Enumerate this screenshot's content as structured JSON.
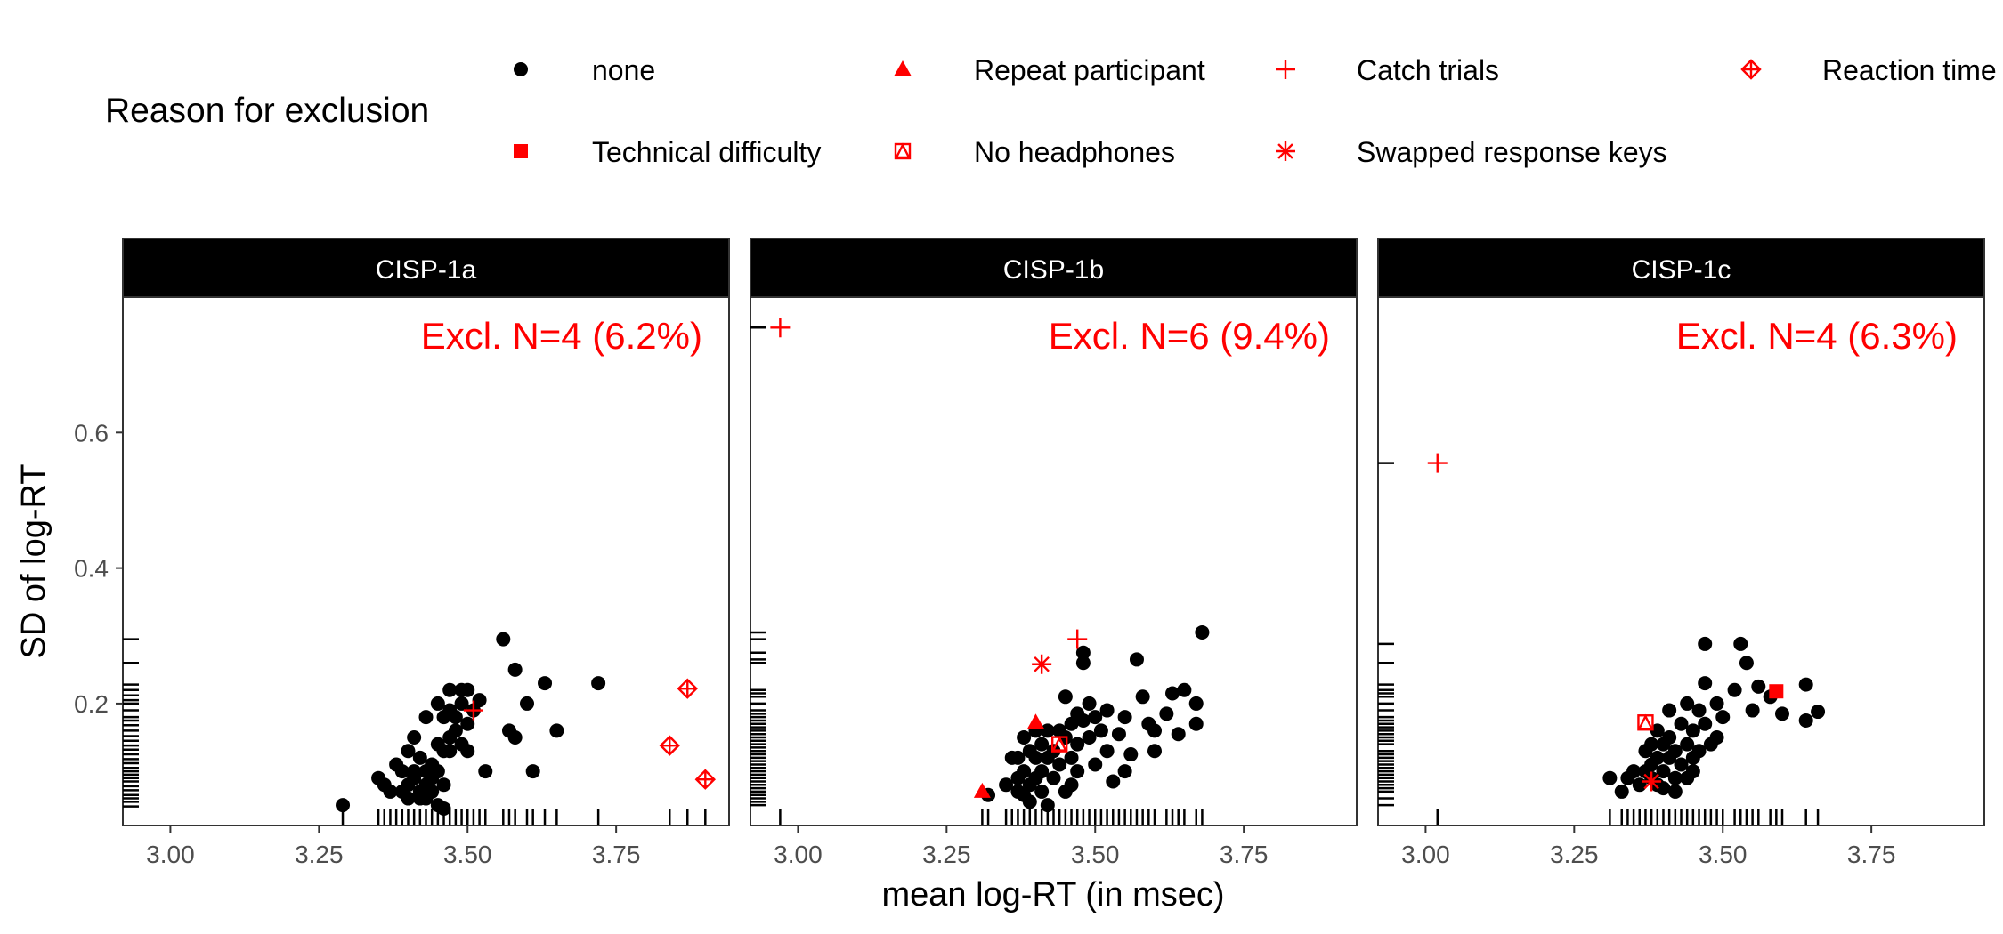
{
  "legend": {
    "title": "Reason for exclusion",
    "items": [
      {
        "label": "none",
        "shape": "circle",
        "color": "#000000"
      },
      {
        "label": "Repeat participant",
        "shape": "triangle",
        "color": "#ff0000"
      },
      {
        "label": "Catch trials",
        "shape": "plus",
        "color": "#ff0000"
      },
      {
        "label": "Reaction time",
        "shape": "diamond-plus",
        "color": "#ff0000"
      },
      {
        "label": "Technical difficulty",
        "shape": "square",
        "color": "#ff0000"
      },
      {
        "label": "No headphones",
        "shape": "square-triangle",
        "color": "#ff0000"
      },
      {
        "label": "Swapped response keys",
        "shape": "asterisk",
        "color": "#ff0000"
      }
    ]
  },
  "chart_data": {
    "type": "scatter",
    "xlabel": "mean log-RT (in msec)",
    "ylabel": "SD of log-RT",
    "xlim": [
      2.92,
      3.94
    ],
    "ylim": [
      0.02,
      0.8
    ],
    "xticks": [
      "3.00",
      "3.25",
      "3.50",
      "3.75"
    ],
    "xtick_values": [
      3.0,
      3.25,
      3.5,
      3.75
    ],
    "yticks": [
      "0.2",
      "0.4",
      "0.6"
    ],
    "ytick_values": [
      0.2,
      0.4,
      0.6
    ],
    "annotation_color": "#ff0000",
    "panels": [
      {
        "title": "CISP-1a",
        "annotation": "Excl. N=4 (6.2%)",
        "points_none": [
          [
            3.29,
            0.05
          ],
          [
            3.35,
            0.09
          ],
          [
            3.36,
            0.08
          ],
          [
            3.37,
            0.07
          ],
          [
            3.38,
            0.11
          ],
          [
            3.39,
            0.1
          ],
          [
            3.39,
            0.07
          ],
          [
            3.4,
            0.13
          ],
          [
            3.4,
            0.08
          ],
          [
            3.4,
            0.06
          ],
          [
            3.41,
            0.15
          ],
          [
            3.41,
            0.1
          ],
          [
            3.41,
            0.09
          ],
          [
            3.42,
            0.12
          ],
          [
            3.42,
            0.07
          ],
          [
            3.42,
            0.06
          ],
          [
            3.43,
            0.18
          ],
          [
            3.43,
            0.1
          ],
          [
            3.43,
            0.08
          ],
          [
            3.43,
            0.06
          ],
          [
            3.44,
            0.11
          ],
          [
            3.44,
            0.09
          ],
          [
            3.44,
            0.07
          ],
          [
            3.45,
            0.2
          ],
          [
            3.45,
            0.14
          ],
          [
            3.45,
            0.1
          ],
          [
            3.45,
            0.05
          ],
          [
            3.46,
            0.18
          ],
          [
            3.46,
            0.13
          ],
          [
            3.46,
            0.08
          ],
          [
            3.46,
            0.045
          ],
          [
            3.47,
            0.22
          ],
          [
            3.47,
            0.19
          ],
          [
            3.47,
            0.15
          ],
          [
            3.47,
            0.13
          ],
          [
            3.48,
            0.18
          ],
          [
            3.48,
            0.16
          ],
          [
            3.49,
            0.22
          ],
          [
            3.49,
            0.2
          ],
          [
            3.49,
            0.14
          ],
          [
            3.5,
            0.22
          ],
          [
            3.5,
            0.17
          ],
          [
            3.5,
            0.13
          ],
          [
            3.51,
            0.19
          ],
          [
            3.52,
            0.205
          ],
          [
            3.53,
            0.1
          ],
          [
            3.56,
            0.295
          ],
          [
            3.57,
            0.16
          ],
          [
            3.58,
            0.25
          ],
          [
            3.58,
            0.15
          ],
          [
            3.6,
            0.2
          ],
          [
            3.61,
            0.1
          ],
          [
            3.63,
            0.23
          ],
          [
            3.65,
            0.16
          ],
          [
            3.72,
            0.23
          ]
        ],
        "points_excl": [
          {
            "reason": "Reaction time",
            "x": 3.84,
            "y": 0.138
          },
          {
            "reason": "Reaction time",
            "x": 3.87,
            "y": 0.222
          },
          {
            "reason": "Reaction time",
            "x": 3.9,
            "y": 0.088
          },
          {
            "reason": "Catch trials",
            "x": 3.51,
            "y": 0.19
          }
        ],
        "rug_y": [
          0.048,
          0.055,
          0.06,
          0.065,
          0.072,
          0.078,
          0.085,
          0.09,
          0.095,
          0.1,
          0.105,
          0.112,
          0.118,
          0.125,
          0.132,
          0.138,
          0.145,
          0.152,
          0.16,
          0.168,
          0.175,
          0.18,
          0.19,
          0.2,
          0.205,
          0.212,
          0.22,
          0.228,
          0.26,
          0.295
        ],
        "rug_x": [
          3.29,
          3.35,
          3.36,
          3.37,
          3.38,
          3.39,
          3.4,
          3.41,
          3.42,
          3.43,
          3.44,
          3.45,
          3.46,
          3.47,
          3.48,
          3.49,
          3.5,
          3.51,
          3.52,
          3.53,
          3.56,
          3.57,
          3.58,
          3.6,
          3.61,
          3.63,
          3.65,
          3.72,
          3.84,
          3.87,
          3.9
        ]
      },
      {
        "title": "CISP-1b",
        "annotation": "Excl. N=6 (9.4%)",
        "points_none": [
          [
            3.32,
            0.065
          ],
          [
            3.35,
            0.08
          ],
          [
            3.36,
            0.12
          ],
          [
            3.37,
            0.12
          ],
          [
            3.37,
            0.09
          ],
          [
            3.37,
            0.07
          ],
          [
            3.38,
            0.15
          ],
          [
            3.38,
            0.1
          ],
          [
            3.38,
            0.065
          ],
          [
            3.39,
            0.13
          ],
          [
            3.39,
            0.08
          ],
          [
            3.39,
            0.055
          ],
          [
            3.4,
            0.16
          ],
          [
            3.4,
            0.12
          ],
          [
            3.4,
            0.09
          ],
          [
            3.41,
            0.14
          ],
          [
            3.41,
            0.1
          ],
          [
            3.41,
            0.07
          ],
          [
            3.42,
            0.16
          ],
          [
            3.42,
            0.12
          ],
          [
            3.42,
            0.05
          ],
          [
            3.43,
            0.13
          ],
          [
            3.43,
            0.09
          ],
          [
            3.44,
            0.16
          ],
          [
            3.44,
            0.11
          ],
          [
            3.45,
            0.21
          ],
          [
            3.45,
            0.15
          ],
          [
            3.45,
            0.07
          ],
          [
            3.46,
            0.17
          ],
          [
            3.46,
            0.12
          ],
          [
            3.46,
            0.08
          ],
          [
            3.47,
            0.185
          ],
          [
            3.47,
            0.14
          ],
          [
            3.47,
            0.1
          ],
          [
            3.48,
            0.275
          ],
          [
            3.48,
            0.26
          ],
          [
            3.48,
            0.175
          ],
          [
            3.49,
            0.2
          ],
          [
            3.49,
            0.15
          ],
          [
            3.5,
            0.18
          ],
          [
            3.5,
            0.11
          ],
          [
            3.51,
            0.16
          ],
          [
            3.52,
            0.19
          ],
          [
            3.52,
            0.13
          ],
          [
            3.53,
            0.085
          ],
          [
            3.54,
            0.155
          ],
          [
            3.55,
            0.18
          ],
          [
            3.55,
            0.1
          ],
          [
            3.56,
            0.125
          ],
          [
            3.57,
            0.265
          ],
          [
            3.58,
            0.21
          ],
          [
            3.59,
            0.17
          ],
          [
            3.6,
            0.16
          ],
          [
            3.6,
            0.13
          ],
          [
            3.62,
            0.185
          ],
          [
            3.63,
            0.215
          ],
          [
            3.64,
            0.155
          ],
          [
            3.65,
            0.22
          ],
          [
            3.67,
            0.2
          ],
          [
            3.67,
            0.17
          ],
          [
            3.68,
            0.305
          ]
        ],
        "points_excl": [
          {
            "reason": "Catch trials",
            "x": 2.97,
            "y": 0.755
          },
          {
            "reason": "Catch trials",
            "x": 3.47,
            "y": 0.295
          },
          {
            "reason": "Swapped response keys",
            "x": 3.41,
            "y": 0.258
          },
          {
            "reason": "Repeat participant",
            "x": 3.4,
            "y": 0.172
          },
          {
            "reason": "Repeat participant",
            "x": 3.31,
            "y": 0.07
          },
          {
            "reason": "No headphones",
            "x": 3.44,
            "y": 0.14
          }
        ],
        "rug_y": [
          0.05,
          0.055,
          0.06,
          0.065,
          0.07,
          0.075,
          0.08,
          0.085,
          0.09,
          0.095,
          0.1,
          0.105,
          0.11,
          0.115,
          0.12,
          0.125,
          0.13,
          0.135,
          0.14,
          0.145,
          0.15,
          0.155,
          0.16,
          0.165,
          0.17,
          0.175,
          0.18,
          0.185,
          0.19,
          0.2,
          0.21,
          0.215,
          0.22,
          0.26,
          0.265,
          0.275,
          0.295,
          0.305,
          0.755
        ],
        "rug_x": [
          2.97,
          3.31,
          3.32,
          3.35,
          3.36,
          3.37,
          3.38,
          3.39,
          3.4,
          3.41,
          3.42,
          3.43,
          3.44,
          3.45,
          3.46,
          3.47,
          3.48,
          3.49,
          3.5,
          3.51,
          3.52,
          3.53,
          3.54,
          3.55,
          3.56,
          3.57,
          3.58,
          3.59,
          3.6,
          3.62,
          3.63,
          3.64,
          3.65,
          3.67,
          3.68
        ]
      },
      {
        "title": "CISP-1c",
        "annotation": "Excl. N=4 (6.3%)",
        "points_none": [
          [
            3.31,
            0.09
          ],
          [
            3.33,
            0.07
          ],
          [
            3.34,
            0.09
          ],
          [
            3.35,
            0.1
          ],
          [
            3.36,
            0.08
          ],
          [
            3.37,
            0.13
          ],
          [
            3.37,
            0.1
          ],
          [
            3.38,
            0.14
          ],
          [
            3.38,
            0.11
          ],
          [
            3.38,
            0.09
          ],
          [
            3.39,
            0.16
          ],
          [
            3.39,
            0.12
          ],
          [
            3.39,
            0.08
          ],
          [
            3.4,
            0.14
          ],
          [
            3.4,
            0.1
          ],
          [
            3.4,
            0.075
          ],
          [
            3.41,
            0.19
          ],
          [
            3.41,
            0.15
          ],
          [
            3.41,
            0.12
          ],
          [
            3.42,
            0.13
          ],
          [
            3.42,
            0.09
          ],
          [
            3.42,
            0.07
          ],
          [
            3.43,
            0.17
          ],
          [
            3.43,
            0.11
          ],
          [
            3.44,
            0.2
          ],
          [
            3.44,
            0.14
          ],
          [
            3.44,
            0.09
          ],
          [
            3.45,
            0.16
          ],
          [
            3.45,
            0.12
          ],
          [
            3.45,
            0.1
          ],
          [
            3.46,
            0.19
          ],
          [
            3.46,
            0.13
          ],
          [
            3.47,
            0.288
          ],
          [
            3.47,
            0.23
          ],
          [
            3.47,
            0.17
          ],
          [
            3.48,
            0.14
          ],
          [
            3.49,
            0.2
          ],
          [
            3.49,
            0.15
          ],
          [
            3.5,
            0.18
          ],
          [
            3.52,
            0.22
          ],
          [
            3.53,
            0.288
          ],
          [
            3.54,
            0.26
          ],
          [
            3.55,
            0.19
          ],
          [
            3.56,
            0.225
          ],
          [
            3.58,
            0.21
          ],
          [
            3.6,
            0.185
          ],
          [
            3.64,
            0.228
          ],
          [
            3.64,
            0.175
          ],
          [
            3.66,
            0.188
          ]
        ],
        "points_excl": [
          {
            "reason": "Catch trials",
            "x": 3.02,
            "y": 0.555
          },
          {
            "reason": "No headphones",
            "x": 3.37,
            "y": 0.172
          },
          {
            "reason": "Swapped response keys",
            "x": 3.38,
            "y": 0.085
          },
          {
            "reason": "Technical difficulty",
            "x": 3.59,
            "y": 0.218
          }
        ],
        "rug_y": [
          0.05,
          0.06,
          0.07,
          0.075,
          0.08,
          0.085,
          0.09,
          0.095,
          0.1,
          0.105,
          0.11,
          0.115,
          0.12,
          0.125,
          0.13,
          0.14,
          0.145,
          0.15,
          0.155,
          0.16,
          0.165,
          0.17,
          0.175,
          0.18,
          0.19,
          0.2,
          0.21,
          0.215,
          0.22,
          0.228,
          0.26,
          0.288,
          0.555
        ],
        "rug_x": [
          3.02,
          3.31,
          3.33,
          3.34,
          3.35,
          3.36,
          3.37,
          3.38,
          3.39,
          3.4,
          3.41,
          3.42,
          3.43,
          3.44,
          3.45,
          3.46,
          3.47,
          3.48,
          3.49,
          3.5,
          3.52,
          3.53,
          3.54,
          3.55,
          3.56,
          3.58,
          3.59,
          3.6,
          3.64,
          3.66
        ]
      }
    ]
  }
}
